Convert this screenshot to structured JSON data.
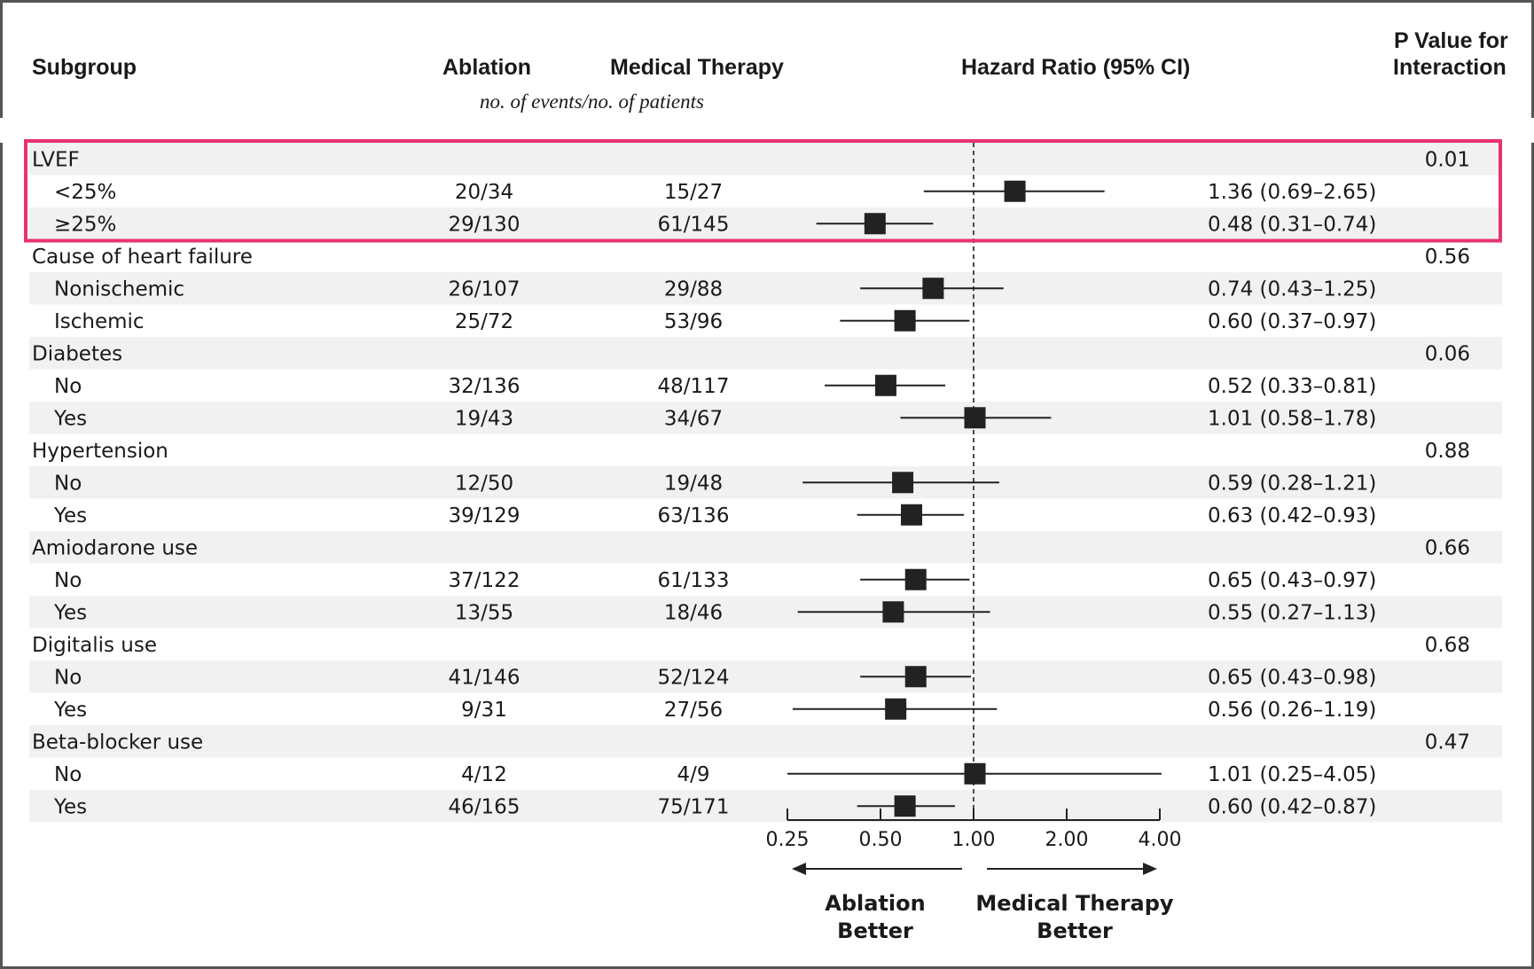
{
  "headers": {
    "subgroup": "Subgroup",
    "ablation": "Ablation",
    "medical": "Medical Therapy",
    "hr": "Hazard Ratio (95% CI)",
    "pvalue_line1": "P Value for",
    "pvalue_line2": "Interaction",
    "events_note": "no. of events/no. of patients"
  },
  "axis_labels": {
    "left_line1": "Ablation",
    "left_line2": "Better",
    "right_line1": "Medical Therapy",
    "right_line2": "Better"
  },
  "highlight_color": "#e8336d",
  "chart_data": {
    "type": "forest",
    "x_scale": "log2",
    "xlim": [
      0.25,
      4.0
    ],
    "xticks": [
      "0.25",
      "0.50",
      "1.00",
      "2.00",
      "4.00"
    ],
    "reference_line": 1.0,
    "rows": [
      {
        "label": "LVEF",
        "group": true,
        "p": "0.01",
        "highlighted": true
      },
      {
        "label": "<25%",
        "ablation": "20/34",
        "medical": "15/27",
        "hr": 1.36,
        "lo": 0.69,
        "hi": 2.65,
        "ci_text": "1.36 (0.69–2.65)",
        "highlighted": true
      },
      {
        "label": "≥25%",
        "ablation": "29/130",
        "medical": "61/145",
        "hr": 0.48,
        "lo": 0.31,
        "hi": 0.74,
        "ci_text": "0.48 (0.31–0.74)",
        "highlighted": true
      },
      {
        "label": "Cause of heart failure",
        "group": true,
        "p": "0.56"
      },
      {
        "label": "Nonischemic",
        "ablation": "26/107",
        "medical": "29/88",
        "hr": 0.74,
        "lo": 0.43,
        "hi": 1.25,
        "ci_text": "0.74 (0.43–1.25)"
      },
      {
        "label": "Ischemic",
        "ablation": "25/72",
        "medical": "53/96",
        "hr": 0.6,
        "lo": 0.37,
        "hi": 0.97,
        "ci_text": "0.60 (0.37–0.97)"
      },
      {
        "label": "Diabetes",
        "group": true,
        "p": "0.06"
      },
      {
        "label": "No",
        "ablation": "32/136",
        "medical": "48/117",
        "hr": 0.52,
        "lo": 0.33,
        "hi": 0.81,
        "ci_text": "0.52 (0.33–0.81)"
      },
      {
        "label": "Yes",
        "ablation": "19/43",
        "medical": "34/67",
        "hr": 1.01,
        "lo": 0.58,
        "hi": 1.78,
        "ci_text": "1.01 (0.58–1.78)"
      },
      {
        "label": "Hypertension",
        "group": true,
        "p": "0.88"
      },
      {
        "label": "No",
        "ablation": "12/50",
        "medical": "19/48",
        "hr": 0.59,
        "lo": 0.28,
        "hi": 1.21,
        "ci_text": "0.59 (0.28–1.21)"
      },
      {
        "label": "Yes",
        "ablation": "39/129",
        "medical": "63/136",
        "hr": 0.63,
        "lo": 0.42,
        "hi": 0.93,
        "ci_text": "0.63 (0.42–0.93)"
      },
      {
        "label": "Amiodarone use",
        "group": true,
        "p": "0.66"
      },
      {
        "label": "No",
        "ablation": "37/122",
        "medical": "61/133",
        "hr": 0.65,
        "lo": 0.43,
        "hi": 0.97,
        "ci_text": "0.65 (0.43–0.97)"
      },
      {
        "label": "Yes",
        "ablation": "13/55",
        "medical": "18/46",
        "hr": 0.55,
        "lo": 0.27,
        "hi": 1.13,
        "ci_text": "0.55 (0.27–1.13)"
      },
      {
        "label": "Digitalis use",
        "group": true,
        "p": "0.68"
      },
      {
        "label": "No",
        "ablation": "41/146",
        "medical": "52/124",
        "hr": 0.65,
        "lo": 0.43,
        "hi": 0.98,
        "ci_text": "0.65 (0.43–0.98)"
      },
      {
        "label": "Yes",
        "ablation": "9/31",
        "medical": "27/56",
        "hr": 0.56,
        "lo": 0.26,
        "hi": 1.19,
        "ci_text": "0.56 (0.26–1.19)"
      },
      {
        "label": "Beta-blocker use",
        "group": true,
        "p": "0.47"
      },
      {
        "label": "No",
        "ablation": "4/12",
        "medical": "4/9",
        "hr": 1.01,
        "lo": 0.25,
        "hi": 4.05,
        "ci_text": "1.01 (0.25–4.05)"
      },
      {
        "label": "Yes",
        "ablation": "46/165",
        "medical": "75/171",
        "hr": 0.6,
        "lo": 0.42,
        "hi": 0.87,
        "ci_text": "0.60 (0.42–0.87)"
      }
    ]
  }
}
